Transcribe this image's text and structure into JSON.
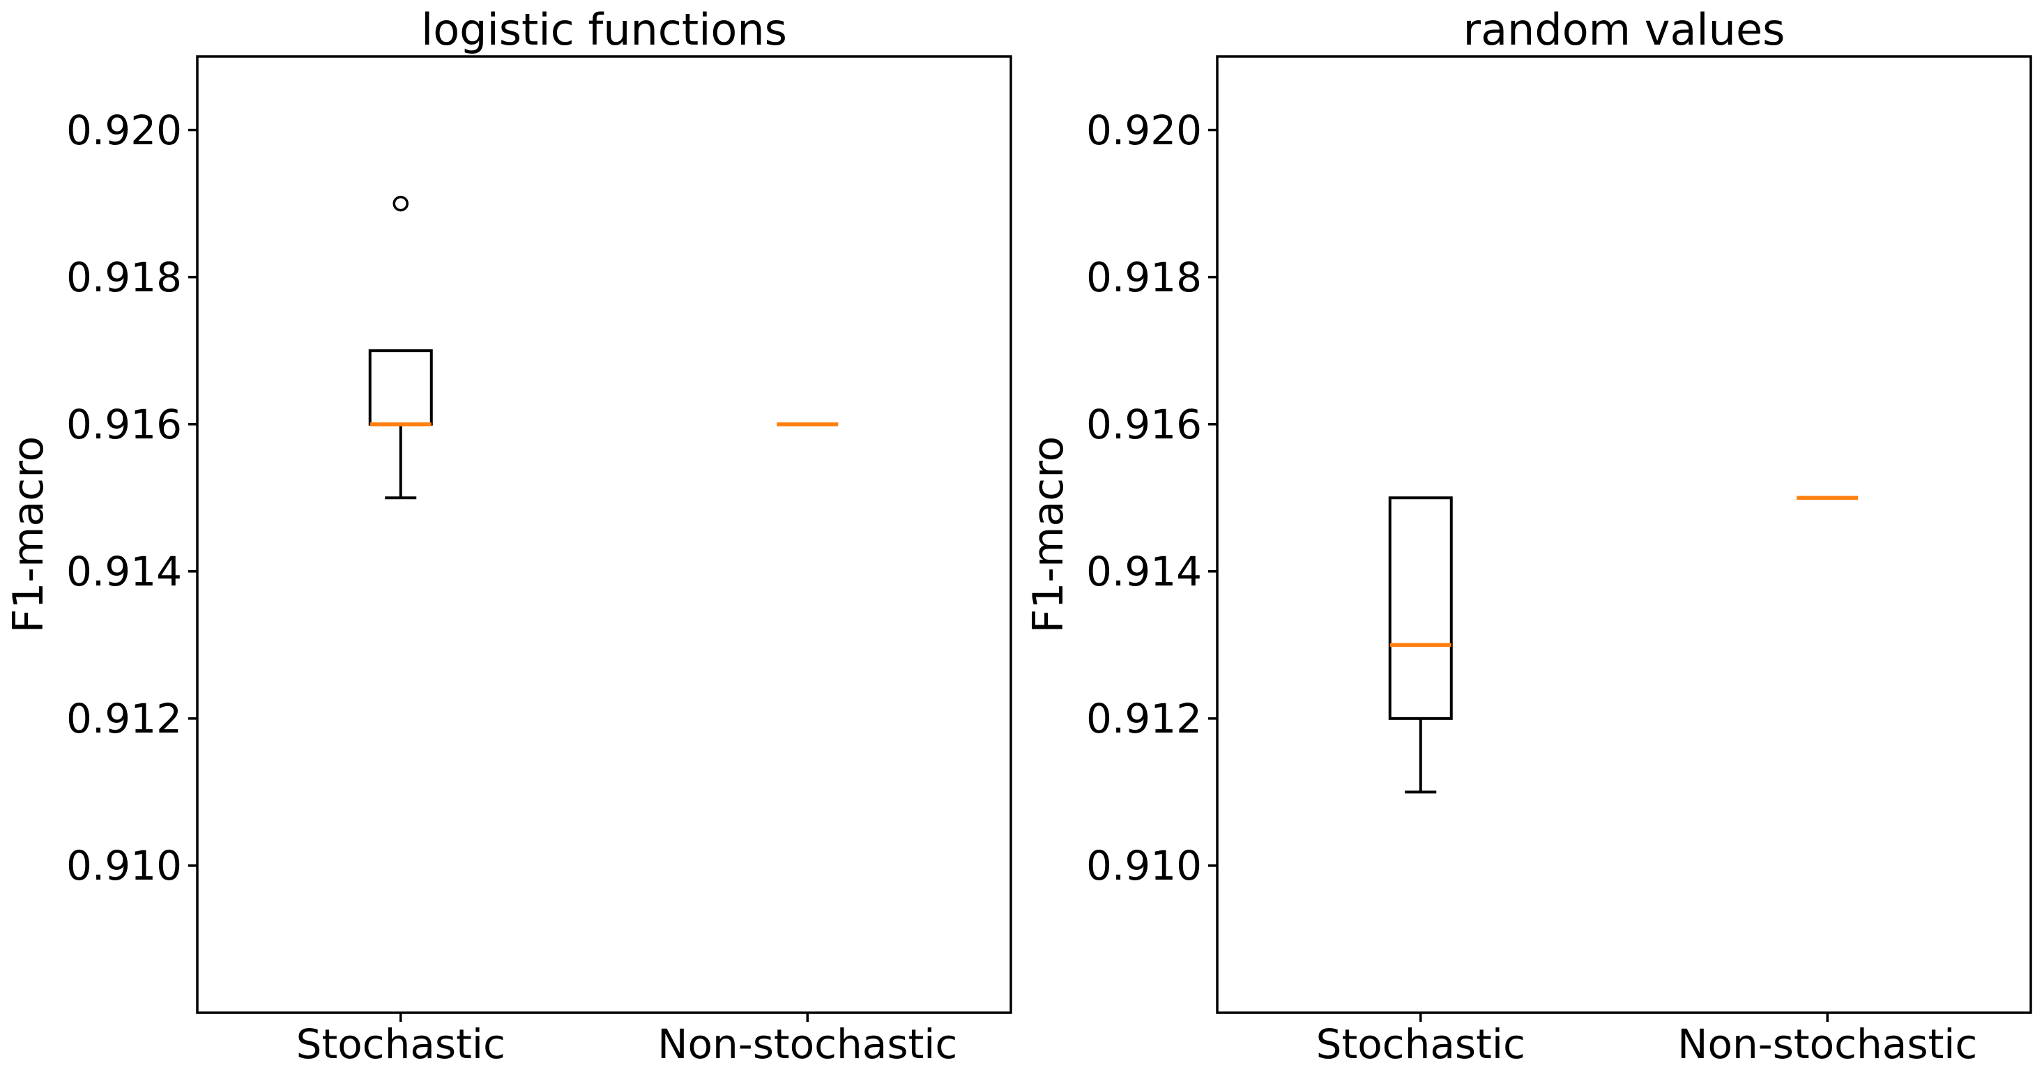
{
  "figure": {
    "background": "#ffffff"
  },
  "style": {
    "box_color": "#000000",
    "median_color": "#ff7f0e",
    "axis_color": "#000000",
    "text_color": "#000000"
  },
  "chart_data": [
    {
      "type": "boxplot",
      "title": "logistic functions",
      "ylabel": "F1-macro",
      "categories": [
        "Stochastic",
        "Non-stochastic"
      ],
      "xlim": [
        0.5,
        2.5
      ],
      "ylim": [
        0.908,
        0.921
      ],
      "grid": false,
      "yticks": [
        {
          "value": 0.91,
          "label": "0.910"
        },
        {
          "value": 0.912,
          "label": "0.912"
        },
        {
          "value": 0.914,
          "label": "0.914"
        },
        {
          "value": 0.916,
          "label": "0.916"
        },
        {
          "value": 0.918,
          "label": "0.918"
        },
        {
          "value": 0.92,
          "label": "0.920"
        }
      ],
      "series": [
        {
          "name": "Stochastic",
          "position": 1,
          "whisker_low": 0.915,
          "q1": 0.916,
          "median": 0.916,
          "q3": 0.917,
          "whisker_high": 0.917,
          "outliers": [
            0.919
          ]
        },
        {
          "name": "Non-stochastic",
          "position": 2,
          "whisker_low": 0.916,
          "q1": 0.916,
          "median": 0.916,
          "q3": 0.916,
          "whisker_high": 0.916,
          "outliers": []
        }
      ]
    },
    {
      "type": "boxplot",
      "title": "random values",
      "ylabel": "F1-macro",
      "categories": [
        "Stochastic",
        "Non-stochastic"
      ],
      "xlim": [
        0.5,
        2.5
      ],
      "ylim": [
        0.908,
        0.921
      ],
      "grid": false,
      "yticks": [
        {
          "value": 0.91,
          "label": "0.910"
        },
        {
          "value": 0.912,
          "label": "0.912"
        },
        {
          "value": 0.914,
          "label": "0.914"
        },
        {
          "value": 0.916,
          "label": "0.916"
        },
        {
          "value": 0.918,
          "label": "0.918"
        },
        {
          "value": 0.92,
          "label": "0.920"
        }
      ],
      "series": [
        {
          "name": "Stochastic",
          "position": 1,
          "whisker_low": 0.911,
          "q1": 0.912,
          "median": 0.913,
          "q3": 0.915,
          "whisker_high": 0.915,
          "outliers": []
        },
        {
          "name": "Non-stochastic",
          "position": 2,
          "whisker_low": 0.915,
          "q1": 0.915,
          "median": 0.915,
          "q3": 0.915,
          "whisker_high": 0.915,
          "outliers": []
        }
      ]
    }
  ]
}
